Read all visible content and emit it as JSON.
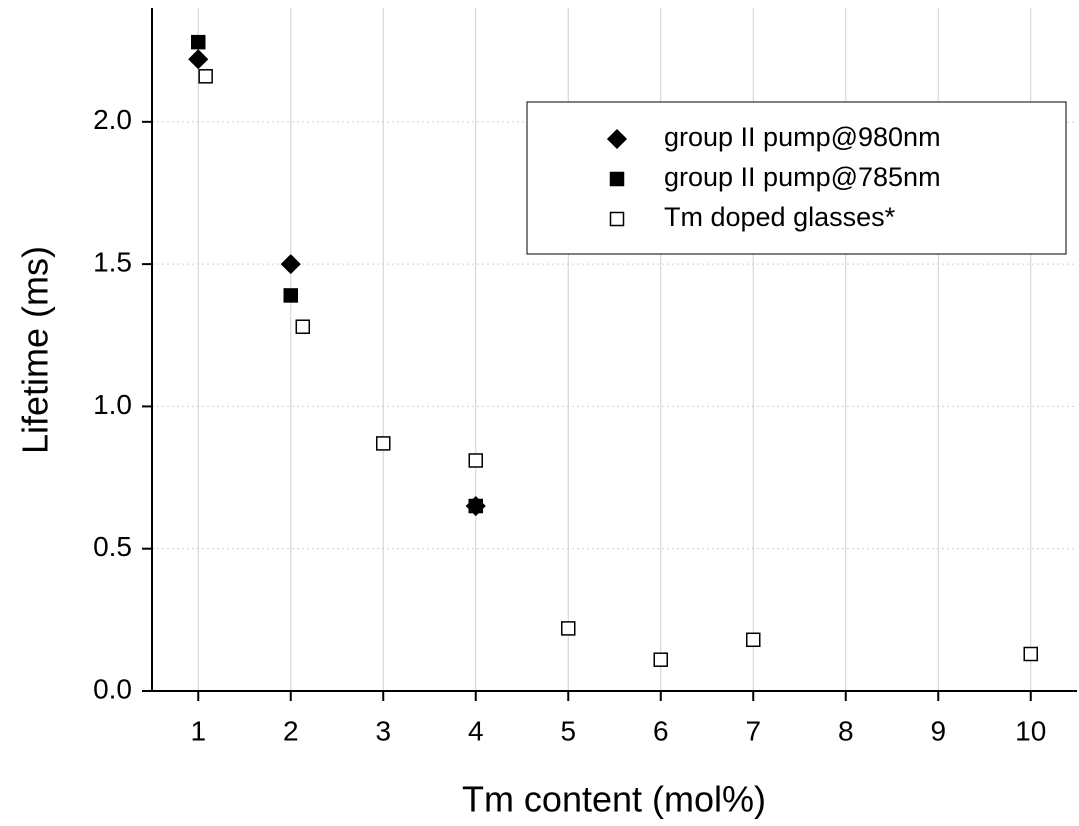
{
  "chart_data": {
    "type": "scatter",
    "xlabel": "Tm content (mol%)",
    "ylabel": "Lifetime (ms)",
    "xlim": [
      0.5,
      10.5
    ],
    "ylim": [
      0,
      2.4
    ],
    "xticks": [
      1,
      2,
      3,
      4,
      5,
      6,
      7,
      8,
      9,
      10
    ],
    "yticks": [
      {
        "value": 0,
        "label": "0.0"
      },
      0.5,
      {
        "value": 1,
        "label": "1.0"
      },
      1.5,
      {
        "value": 2,
        "label": "2.0"
      }
    ],
    "grid": true,
    "legend": "upper right",
    "series": [
      {
        "name": "group II pump@980nm",
        "color": "#000000",
        "marker": "diamond",
        "filled": true,
        "x": [
          1,
          2,
          4
        ],
        "values": [
          2.22,
          1.5,
          0.65
        ]
      },
      {
        "name": "group II pump@785nm",
        "color": "#000000",
        "marker": "square",
        "filled": true,
        "x": [
          1,
          2,
          4
        ],
        "values": [
          2.28,
          1.39,
          0.65
        ]
      },
      {
        "name": "Tm doped glasses*",
        "color": "#000000",
        "marker": "square",
        "filled": false,
        "x": [
          1.08,
          2.13,
          3,
          4,
          5,
          6,
          7,
          10
        ],
        "values": [
          2.16,
          1.28,
          0.87,
          0.81,
          0.22,
          0.11,
          0.18,
          0.13
        ]
      }
    ]
  }
}
